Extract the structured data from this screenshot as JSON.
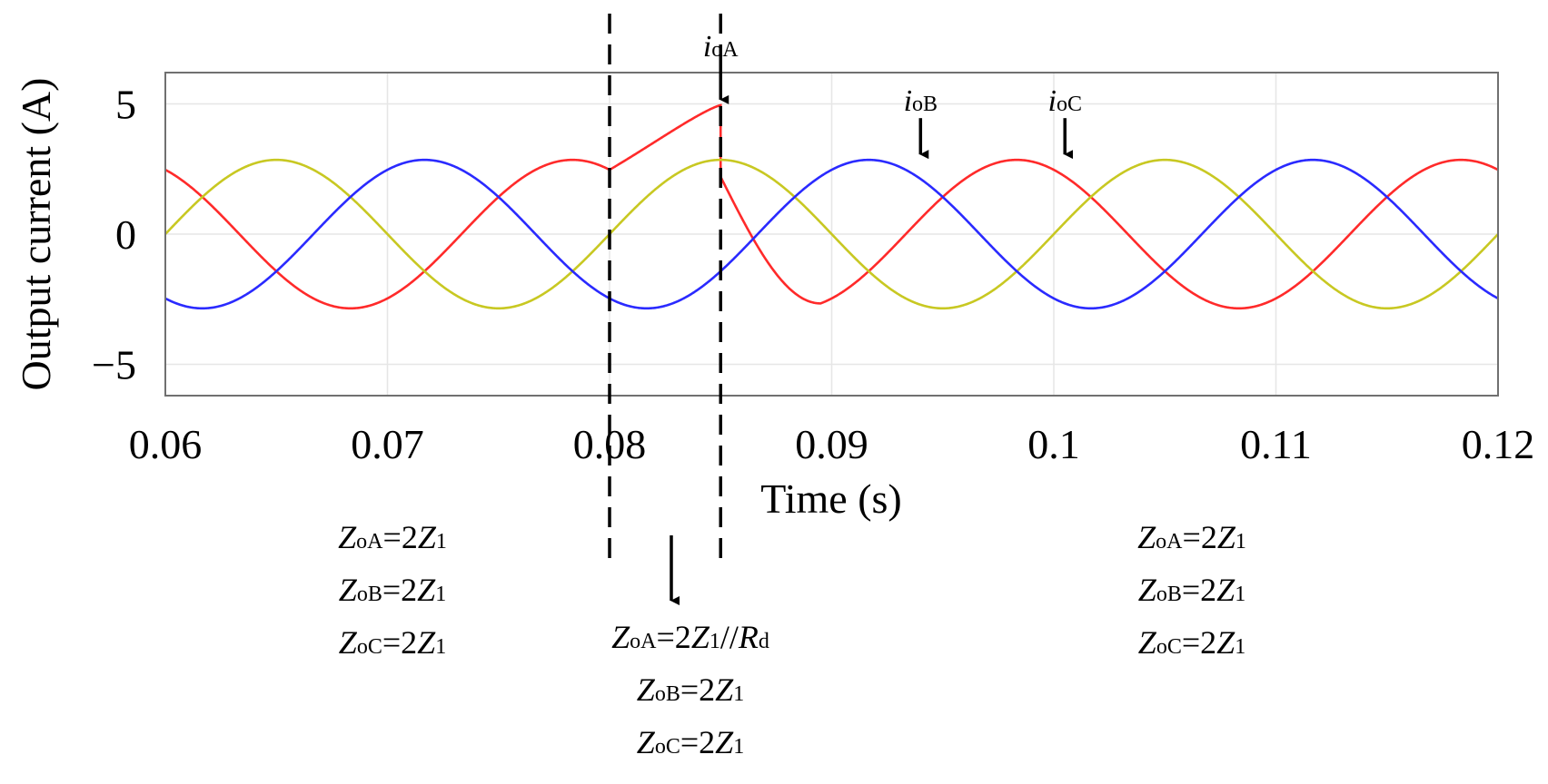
{
  "chart_data": {
    "type": "line",
    "xlabel": "Time (s)",
    "ylabel": "Output current (A)",
    "xlim": [
      0.06,
      0.12
    ],
    "ylim": [
      -6.2,
      6.2
    ],
    "x_ticks": [
      "0.06",
      "0.07",
      "0.08",
      "0.09",
      "0.1",
      "0.11",
      "0.12"
    ],
    "y_ticks": [
      {
        "value": 5,
        "label": "5"
      },
      {
        "value": 0,
        "label": "0"
      },
      {
        "value": -5,
        "label": "−5"
      }
    ],
    "grid": true,
    "frequency_hz": 50,
    "series": [
      {
        "key": "ioA",
        "color": "#ff2a2a",
        "amplitude": 2.85,
        "phase_deg": 120
      },
      {
        "key": "ioB",
        "color": "#c8c822",
        "amplitude": 2.85,
        "phase_deg": 0
      },
      {
        "key": "ioC",
        "color": "#2a2aff",
        "amplitude": 2.85,
        "phase_deg": -120
      }
    ],
    "event": {
      "start": 0.08,
      "end": 0.085,
      "ioA_rise_to": 4.95,
      "ioA_after_drop": 2.2
    },
    "dashed_lines_x": [
      0.08,
      0.085
    ],
    "callouts": [
      {
        "italic": "i",
        "sub": "oA",
        "x": 0.085,
        "y": 4.95
      },
      {
        "italic": "i",
        "sub": "oB",
        "x": 0.094,
        "y": 2.85
      },
      {
        "italic": "i",
        "sub": "oC",
        "x": 0.1005,
        "y": 2.85
      }
    ]
  },
  "annotations": {
    "before": [
      {
        "z": "Z",
        "zsub": "oA",
        "rhs": "=2",
        "z1": "Z",
        "z1sub": "1",
        "tail": "",
        "rd": "",
        "rdsub": ""
      },
      {
        "z": "Z",
        "zsub": "oB",
        "rhs": "=2",
        "z1": "Z",
        "z1sub": "1",
        "tail": "",
        "rd": "",
        "rdsub": ""
      },
      {
        "z": "Z",
        "zsub": "oC",
        "rhs": "=2",
        "z1": "Z",
        "z1sub": "1",
        "tail": "",
        "rd": "",
        "rdsub": ""
      }
    ],
    "during": [
      {
        "z": "Z",
        "zsub": "oA",
        "rhs": "=2",
        "z1": "Z",
        "z1sub": "1",
        "tail": "//",
        "rd": "R",
        "rdsub": "d"
      },
      {
        "z": "Z",
        "zsub": "oB",
        "rhs": "=2",
        "z1": "Z",
        "z1sub": "1",
        "tail": "",
        "rd": "",
        "rdsub": ""
      },
      {
        "z": "Z",
        "zsub": "oC",
        "rhs": "=2",
        "z1": "Z",
        "z1sub": "1",
        "tail": "",
        "rd": "",
        "rdsub": ""
      }
    ],
    "after": [
      {
        "z": "Z",
        "zsub": "oA",
        "rhs": "=2",
        "z1": "Z",
        "z1sub": "1",
        "tail": "",
        "rd": "",
        "rdsub": ""
      },
      {
        "z": "Z",
        "zsub": "oB",
        "rhs": "=2",
        "z1": "Z",
        "z1sub": "1",
        "tail": "",
        "rd": "",
        "rdsub": ""
      },
      {
        "z": "Z",
        "zsub": "oC",
        "rhs": "=2",
        "z1": "Z",
        "z1sub": "1",
        "tail": "",
        "rd": "",
        "rdsub": ""
      }
    ]
  }
}
